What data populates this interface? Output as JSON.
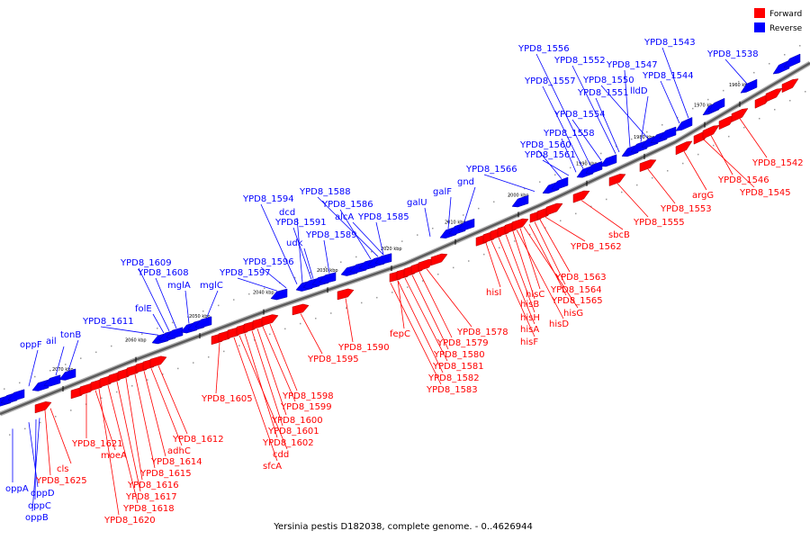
{
  "caption": "Yersinia pestis D182038, complete genome. - 0..4626944",
  "legend": [
    {
      "name": "Forward",
      "color": "#ff0000"
    },
    {
      "name": "Reverse",
      "color": "#0000ff"
    }
  ],
  "colors": {
    "forward": "#ff0000",
    "reverse": "#0000ff",
    "backbone": "#808080"
  },
  "ticks": [
    "1960 kbp",
    "1970 kbp",
    "1980 kbp",
    "1990 kbp",
    "2000 kbp",
    "2010 kbp",
    "2020 kbp",
    "2030 kbp",
    "2040 kbp",
    "2050 kbp",
    "2060 kbp",
    "2070 kbp"
  ],
  "reverse_labels": [
    "YPD8_1543",
    "YPD8_1538",
    "YPD8_1556",
    "YPD8_1552",
    "YPD8_1547",
    "YPD8_1550",
    "YPD8_1544",
    "YPD8_1557",
    "YPD8_1551",
    "lldD",
    "YPD8_1554",
    "YPD8_1558",
    "YPD8_1560",
    "YPD8_1561",
    "YPD8_1566",
    "gnd",
    "galF",
    "galU",
    "YPD8_1588",
    "YPD8_1594",
    "YPD8_1586",
    "dcd",
    "alcA",
    "YPD8_1585",
    "YPD8_1591",
    "udk",
    "YPD8_1589",
    "YPD8_1609",
    "YPD8_1596",
    "YPD8_1608",
    "YPD8_1597",
    "mglA",
    "mglC",
    "folE",
    "YPD8_1611",
    "tonB",
    "ail",
    "oppF",
    "oppA",
    "oppD",
    "oppC",
    "oppB"
  ],
  "forward_labels": [
    "YPD8_1542",
    "YPD8_1546",
    "YPD8_1545",
    "argG",
    "YPD8_1553",
    "YPD8_1555",
    "sbcB",
    "YPD8_1562",
    "YPD8_1563",
    "YPD8_1564",
    "YPD8_1565",
    "hisG",
    "hisD",
    "hisC",
    "hisB",
    "hisH",
    "hisA",
    "hisF",
    "hisI",
    "YPD8_1578",
    "YPD8_1579",
    "YPD8_1580",
    "YPD8_1581",
    "YPD8_1582",
    "YPD8_1583",
    "fepC",
    "YPD8_1590",
    "YPD8_1595",
    "YPD8_1598",
    "YPD8_1599",
    "YPD8_1600",
    "YPD8_1601",
    "YPD8_1602",
    "cdd",
    "sfcA",
    "YPD8_1605",
    "YPD8_1612",
    "adhC",
    "YPD8_1614",
    "YPD8_1615",
    "YPD8_1616",
    "YPD8_1617",
    "YPD8_1618",
    "YPD8_1620",
    "YPD8_1621",
    "moeA",
    "YPD8_1625",
    "cls"
  ]
}
